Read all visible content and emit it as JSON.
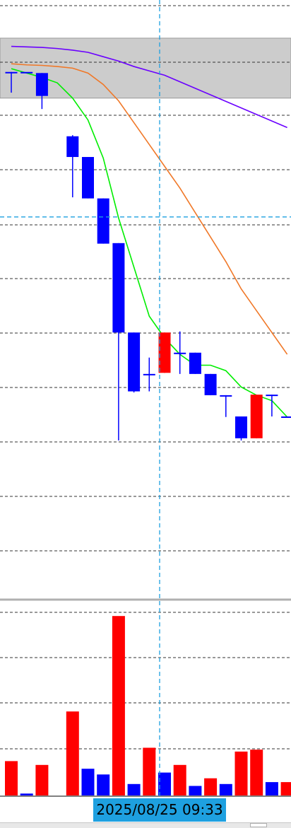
{
  "chart_data": [
    {
      "type": "candlestick",
      "panel": "price",
      "grid": true,
      "ylim": [
        0,
        1100
      ],
      "x": [
        0,
        1,
        2,
        3,
        4,
        5,
        6,
        7,
        8,
        9,
        10,
        11,
        12,
        13,
        14,
        15,
        16,
        17,
        18
      ],
      "candles": [
        {
          "o": 968,
          "h": 968,
          "l": 930,
          "c": 968
        },
        {
          "o": 968,
          "h": 968,
          "l": 968,
          "c": 968
        },
        {
          "o": 966,
          "h": 966,
          "l": 900,
          "c": 924
        },
        {
          "o": null,
          "h": null,
          "l": null,
          "c": null
        },
        {
          "o": 850,
          "h": 852,
          "l": 738,
          "c": 812
        },
        {
          "o": 812,
          "h": 812,
          "l": 736,
          "c": 736
        },
        {
          "o": 736,
          "h": 736,
          "l": 653,
          "c": 653
        },
        {
          "o": 654,
          "h": 654,
          "l": 292,
          "c": 490
        },
        {
          "o": 490,
          "h": 490,
          "l": 380,
          "c": 382
        },
        {
          "o": 414,
          "h": 444,
          "l": 382,
          "c": 414
        },
        {
          "o": 416,
          "h": 490,
          "l": 416,
          "c": 490
        },
        {
          "o": 453,
          "h": 492,
          "l": 414,
          "c": 453
        },
        {
          "o": 453,
          "h": 453,
          "l": 414,
          "c": 414
        },
        {
          "o": 414,
          "h": 414,
          "l": 375,
          "c": 375
        },
        {
          "o": 375,
          "h": 375,
          "l": 335,
          "c": 375
        },
        {
          "o": 336,
          "h": 336,
          "l": 292,
          "c": 296
        },
        {
          "o": 296,
          "h": 376,
          "l": 296,
          "c": 376
        },
        {
          "o": 376,
          "h": 376,
          "l": 336,
          "c": 376
        },
        {
          "o": 336,
          "h": 336,
          "l": 336,
          "c": 336
        }
      ],
      "up_color": "#ff0000",
      "down_color": "#0000ff",
      "series": [
        {
          "color": "#6a00ff",
          "values": [
            1015,
            1014,
            1013,
            1011,
            1008,
            1004,
            996,
            988,
            978,
            970,
            962,
            950,
            938,
            926,
            914,
            902,
            890,
            878,
            866
          ]
        },
        {
          "color": "#f07828",
          "values": [
            983,
            981,
            980,
            978,
            975,
            966,
            945,
            915,
            875,
            835,
            795,
            755,
            710,
            665,
            620,
            570,
            530,
            490,
            450
          ]
        },
        {
          "color": "#00ee00",
          "values": [
            974,
            966,
            958,
            948,
            920,
            880,
            810,
            700,
            610,
            520,
            480,
            450,
            430,
            430,
            420,
            390,
            375,
            365,
            335
          ]
        }
      ],
      "shaded_band": [
        920,
        1030
      ],
      "crosshair_y": 702
    },
    {
      "type": "bar",
      "panel": "volume",
      "grid": true,
      "ylim": [
        0,
        100
      ],
      "values": [
        18,
        1,
        16,
        0,
        44,
        14,
        11,
        94,
        6,
        25,
        12,
        16,
        5,
        9,
        6,
        23,
        24,
        7,
        7
      ],
      "colors": [
        "#ff0000",
        "#0000ff",
        "#ff0000",
        "#ffffff",
        "#ff0000",
        "#0000ff",
        "#0000ff",
        "#ff0000",
        "#0000ff",
        "#ff0000",
        "#0000ff",
        "#ff0000",
        "#0000ff",
        "#ff0000",
        "#0000ff",
        "#ff0000",
        "#ff0000",
        "#0000ff",
        "#ff0000"
      ]
    }
  ],
  "crosshair": {
    "label": "2025/08/25 09:33",
    "color": "#1ea0e0"
  }
}
